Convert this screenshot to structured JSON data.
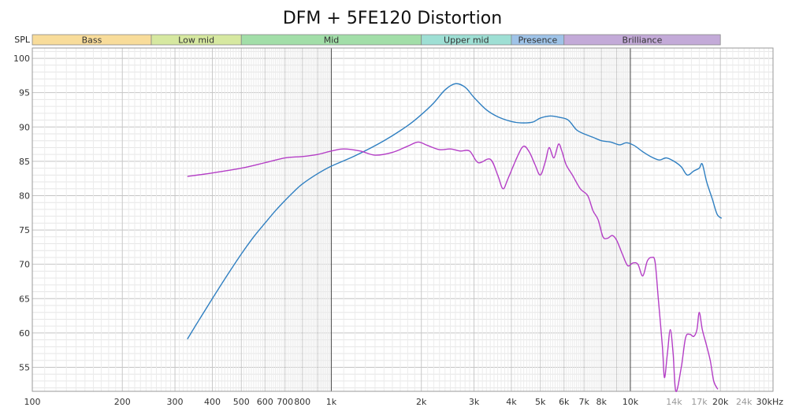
{
  "chart_data": {
    "type": "line",
    "title": "DFM + 5FE120 Distortion",
    "ylabel": "SPL",
    "xscale": "log",
    "xlim": [
      100,
      30000
    ],
    "ylim": [
      51.5,
      101.5
    ],
    "grid": true,
    "y_ticks": [
      55,
      60,
      65,
      70,
      75,
      80,
      85,
      90,
      95,
      100
    ],
    "x_ticks": [
      {
        "v": 100,
        "label": "100",
        "muted": false
      },
      {
        "v": 200,
        "label": "200",
        "muted": false
      },
      {
        "v": 300,
        "label": "300",
        "muted": false
      },
      {
        "v": 400,
        "label": "400",
        "muted": false
      },
      {
        "v": 500,
        "label": "500",
        "muted": false
      },
      {
        "v": 600,
        "label": "600",
        "muted": false
      },
      {
        "v": 700,
        "label": "700",
        "muted": false
      },
      {
        "v": 800,
        "label": "800",
        "muted": false
      },
      {
        "v": 1000,
        "label": "1k",
        "muted": false
      },
      {
        "v": 2000,
        "label": "2k",
        "muted": false
      },
      {
        "v": 3000,
        "label": "3k",
        "muted": false
      },
      {
        "v": 4000,
        "label": "4k",
        "muted": false
      },
      {
        "v": 5000,
        "label": "5k",
        "muted": false
      },
      {
        "v": 6000,
        "label": "6k",
        "muted": false
      },
      {
        "v": 7000,
        "label": "7k",
        "muted": false
      },
      {
        "v": 8000,
        "label": "8k",
        "muted": false
      },
      {
        "v": 10000,
        "label": "10k",
        "muted": false
      },
      {
        "v": 14000,
        "label": "14k",
        "muted": true
      },
      {
        "v": 17000,
        "label": "17k",
        "muted": true
      },
      {
        "v": 20000,
        "label": "20k",
        "muted": false
      },
      {
        "v": 24000,
        "label": "24k",
        "muted": true
      },
      {
        "v": 30000,
        "label": "30kHz",
        "muted": false
      }
    ],
    "bands": [
      {
        "label": "Bass",
        "from": 100,
        "to": 250,
        "color": "#f8dc9a"
      },
      {
        "label": "Low mid",
        "from": 250,
        "to": 500,
        "color": "#d6e8a0"
      },
      {
        "label": "Mid",
        "from": 500,
        "to": 2000,
        "color": "#a2dea8"
      },
      {
        "label": "Upper mid",
        "from": 2000,
        "to": 4000,
        "color": "#9edfd4"
      },
      {
        "label": "Presence",
        "from": 4000,
        "to": 6000,
        "color": "#9fc3e8"
      },
      {
        "label": "Brilliance",
        "from": 6000,
        "to": 20000,
        "color": "#c3aad8"
      }
    ],
    "series": [
      {
        "color": "#2f7fc1",
        "points": [
          [
            330,
            59.1
          ],
          [
            360,
            61.8
          ],
          [
            400,
            65.0
          ],
          [
            450,
            68.5
          ],
          [
            500,
            71.5
          ],
          [
            550,
            74.0
          ],
          [
            600,
            76.0
          ],
          [
            650,
            77.8
          ],
          [
            700,
            79.3
          ],
          [
            750,
            80.6
          ],
          [
            800,
            81.7
          ],
          [
            900,
            83.2
          ],
          [
            1000,
            84.3
          ],
          [
            1200,
            85.8
          ],
          [
            1500,
            88.0
          ],
          [
            1800,
            90.2
          ],
          [
            2000,
            91.8
          ],
          [
            2200,
            93.5
          ],
          [
            2400,
            95.4
          ],
          [
            2600,
            96.3
          ],
          [
            2800,
            95.8
          ],
          [
            3000,
            94.3
          ],
          [
            3300,
            92.5
          ],
          [
            3600,
            91.5
          ],
          [
            4000,
            90.8
          ],
          [
            4300,
            90.6
          ],
          [
            4700,
            90.7
          ],
          [
            5000,
            91.3
          ],
          [
            5400,
            91.6
          ],
          [
            5800,
            91.4
          ],
          [
            6200,
            91.0
          ],
          [
            6600,
            89.6
          ],
          [
            7000,
            89.0
          ],
          [
            7500,
            88.5
          ],
          [
            8000,
            88.0
          ],
          [
            8600,
            87.8
          ],
          [
            9200,
            87.4
          ],
          [
            9700,
            87.7
          ],
          [
            10300,
            87.3
          ],
          [
            11000,
            86.4
          ],
          [
            11800,
            85.6
          ],
          [
            12500,
            85.2
          ],
          [
            13200,
            85.5
          ],
          [
            14000,
            85.0
          ],
          [
            14800,
            84.2
          ],
          [
            15500,
            83.0
          ],
          [
            16300,
            83.6
          ],
          [
            17000,
            84.0
          ],
          [
            17400,
            84.6
          ],
          [
            18000,
            82.0
          ],
          [
            18800,
            79.5
          ],
          [
            19500,
            77.3
          ],
          [
            20200,
            76.7
          ]
        ]
      },
      {
        "color": "#b43ec6",
        "points": [
          [
            330,
            82.8
          ],
          [
            400,
            83.3
          ],
          [
            500,
            84.0
          ],
          [
            600,
            84.8
          ],
          [
            700,
            85.5
          ],
          [
            800,
            85.7
          ],
          [
            900,
            86.0
          ],
          [
            1000,
            86.5
          ],
          [
            1100,
            86.8
          ],
          [
            1250,
            86.5
          ],
          [
            1400,
            85.9
          ],
          [
            1600,
            86.3
          ],
          [
            1800,
            87.2
          ],
          [
            1950,
            87.8
          ],
          [
            2100,
            87.3
          ],
          [
            2300,
            86.7
          ],
          [
            2500,
            86.8
          ],
          [
            2700,
            86.5
          ],
          [
            2900,
            86.5
          ],
          [
            3100,
            84.8
          ],
          [
            3400,
            85.3
          ],
          [
            3600,
            83.0
          ],
          [
            3750,
            81.0
          ],
          [
            3900,
            82.5
          ],
          [
            4200,
            85.8
          ],
          [
            4400,
            87.2
          ],
          [
            4600,
            86.3
          ],
          [
            4800,
            84.5
          ],
          [
            5000,
            83.0
          ],
          [
            5200,
            85.0
          ],
          [
            5350,
            87.0
          ],
          [
            5550,
            85.5
          ],
          [
            5750,
            87.5
          ],
          [
            5900,
            86.5
          ],
          [
            6100,
            84.5
          ],
          [
            6400,
            83.0
          ],
          [
            6800,
            81.0
          ],
          [
            7200,
            80.0
          ],
          [
            7500,
            77.8
          ],
          [
            7800,
            76.5
          ],
          [
            8100,
            74.0
          ],
          [
            8400,
            73.8
          ],
          [
            8700,
            74.2
          ],
          [
            9000,
            73.5
          ],
          [
            9400,
            71.5
          ],
          [
            9800,
            69.8
          ],
          [
            10200,
            70.2
          ],
          [
            10600,
            70.0
          ],
          [
            11000,
            68.3
          ],
          [
            11400,
            70.5
          ],
          [
            11800,
            71.0
          ],
          [
            12100,
            70.3
          ],
          [
            12400,
            65.0
          ],
          [
            12800,
            58.0
          ],
          [
            13000,
            53.5
          ],
          [
            13300,
            57.0
          ],
          [
            13600,
            60.5
          ],
          [
            13900,
            57.0
          ],
          [
            14200,
            51.5
          ],
          [
            14800,
            55.0
          ],
          [
            15300,
            59.3
          ],
          [
            15800,
            59.8
          ],
          [
            16300,
            59.5
          ],
          [
            16700,
            60.5
          ],
          [
            17000,
            63.0
          ],
          [
            17400,
            60.5
          ],
          [
            17900,
            58.5
          ],
          [
            18500,
            56.0
          ],
          [
            19000,
            53.0
          ],
          [
            19600,
            51.8
          ]
        ]
      }
    ]
  }
}
